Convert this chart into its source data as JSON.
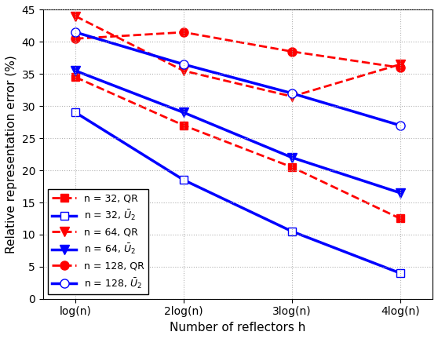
{
  "x_positions": [
    1,
    2,
    3,
    4
  ],
  "x_labels": [
    "log(n)",
    "2log(n)",
    "3log(n)",
    "4log(n)"
  ],
  "series": [
    {
      "label": "n = 32, QR",
      "color": "#FF0000",
      "linestyle": "dashed",
      "marker": "s",
      "markerfacecolor": "#FF0000",
      "linewidth": 2.0,
      "markersize": 7,
      "values": [
        34.5,
        27.0,
        20.5,
        12.5
      ]
    },
    {
      "label": "n = 32, $\\bar{U}_2$",
      "color": "#0000FF",
      "linestyle": "solid",
      "marker": "s",
      "markerfacecolor": "white",
      "linewidth": 2.5,
      "markersize": 7,
      "values": [
        29.0,
        18.5,
        10.5,
        4.0
      ]
    },
    {
      "label": "n = 64, QR",
      "color": "#FF0000",
      "linestyle": "dashed",
      "marker": "v",
      "markerfacecolor": "#FF0000",
      "linewidth": 2.0,
      "markersize": 9,
      "values": [
        44.0,
        35.5,
        31.5,
        36.5
      ]
    },
    {
      "label": "n = 64, $\\bar{U}_2$",
      "color": "#0000FF",
      "linestyle": "solid",
      "marker": "v",
      "markerfacecolor": "#0000FF",
      "linewidth": 2.5,
      "markersize": 9,
      "values": [
        35.5,
        29.0,
        22.0,
        16.5
      ]
    },
    {
      "label": "n = 128, QR",
      "color": "#FF0000",
      "linestyle": "dashed",
      "marker": "o",
      "markerfacecolor": "#FF0000",
      "linewidth": 2.0,
      "markersize": 8,
      "values": [
        40.5,
        41.5,
        38.5,
        36.0
      ]
    },
    {
      "label": "n = 128, $\\bar{U}_2$",
      "color": "#0000FF",
      "linestyle": "solid",
      "marker": "o",
      "markerfacecolor": "white",
      "linewidth": 2.5,
      "markersize": 8,
      "values": [
        41.5,
        36.5,
        32.0,
        27.0
      ]
    }
  ],
  "xlabel": "Number of reflectors h",
  "ylabel": "Relative representation error (%)",
  "ylim": [
    0,
    45
  ],
  "yticks": [
    0,
    5,
    10,
    15,
    20,
    25,
    30,
    35,
    40,
    45
  ],
  "title": "",
  "legend_loc": "lower left",
  "grid_color": "#aaaaaa",
  "background_color": "#ffffff"
}
